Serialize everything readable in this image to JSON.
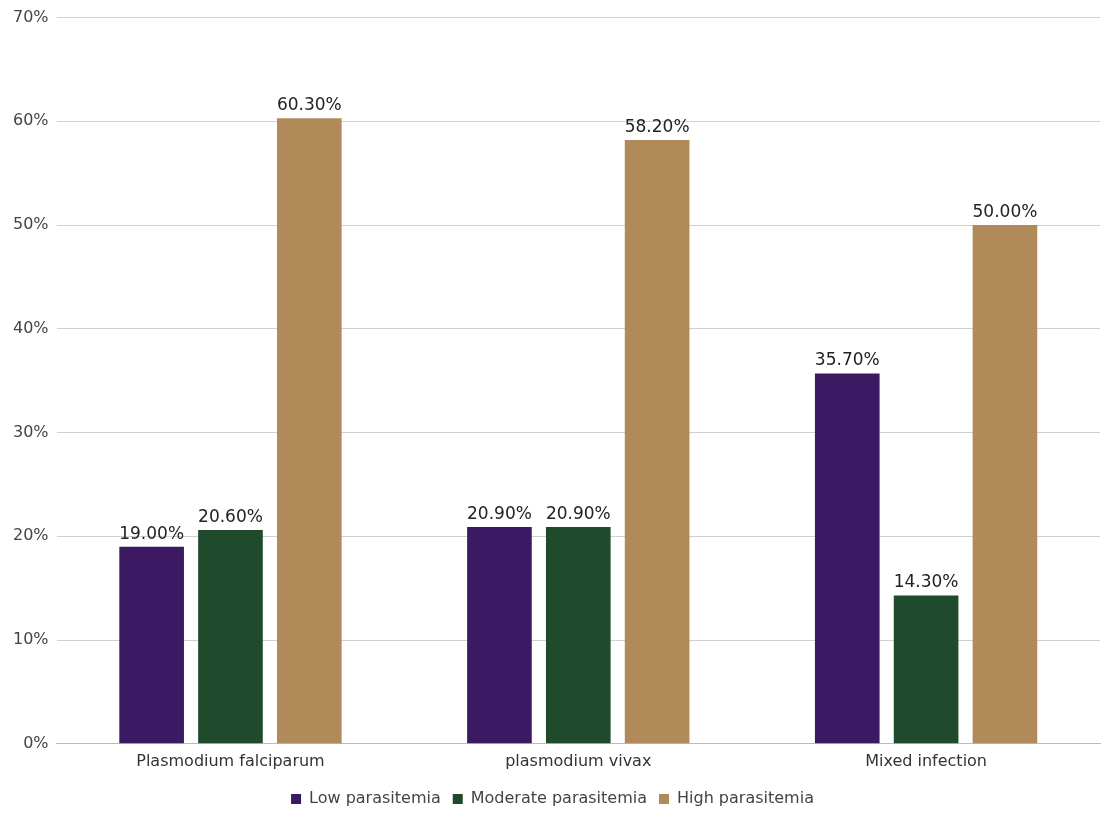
{
  "chart_data": {
    "type": "bar",
    "categories": [
      "Plasmodium falciparum",
      "plasmodium vivax",
      "Mixed infection"
    ],
    "series": [
      {
        "name": "Low parasitemia",
        "color": "#3b1a63",
        "values": [
          19.0,
          20.9,
          35.7
        ],
        "value_labels": [
          "19.00%",
          "20.90%",
          "35.70%"
        ]
      },
      {
        "name": "Moderate parasitemia",
        "color": "#1f4a2c",
        "values": [
          20.6,
          20.9,
          14.3
        ],
        "value_labels": [
          "20.60%",
          "20.90%",
          "14.30%"
        ]
      },
      {
        "name": "High parasitemia",
        "color": "#b08a58",
        "values": [
          60.3,
          58.2,
          50.0
        ],
        "value_labels": [
          "60.30%",
          "58.20%",
          "50.00%"
        ]
      }
    ],
    "ylim": [
      0,
      70
    ],
    "yticks": [
      {
        "value": 0,
        "label": "0%"
      },
      {
        "value": 10,
        "label": "10%"
      },
      {
        "value": 20,
        "label": "20%"
      },
      {
        "value": 30,
        "label": "30%"
      },
      {
        "value": 40,
        "label": "40%"
      },
      {
        "value": 50,
        "label": "50%"
      },
      {
        "value": 60,
        "label": "60%"
      },
      {
        "value": 70,
        "label": "70%"
      }
    ],
    "grid": "y",
    "legend": "bottom"
  }
}
